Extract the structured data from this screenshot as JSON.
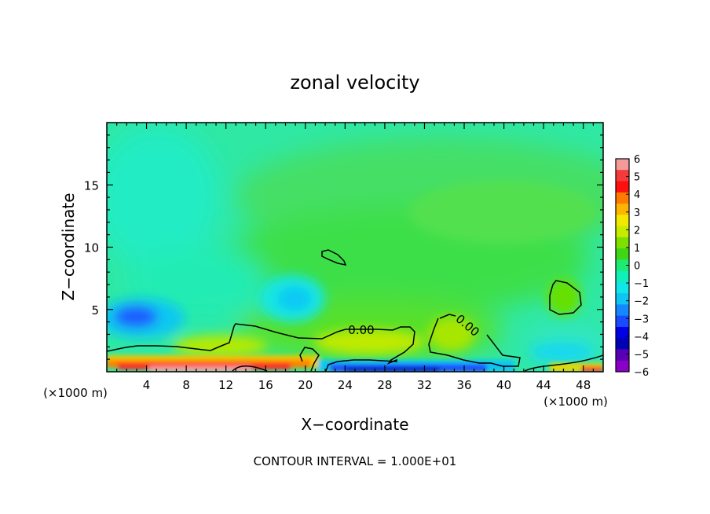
{
  "chart_data": {
    "type": "heatmap",
    "title": "zonal velocity",
    "xlabel": "X−coordinate",
    "ylabel": "Z−coordinate",
    "x_unit_left": "(×1000 m)",
    "x_unit_right": "(×1000 m)",
    "footer": "CONTOUR INTERVAL = 1.000E+01",
    "xlim": [
      0,
      50
    ],
    "ylim": [
      0,
      20
    ],
    "xticks": [
      "4",
      "8",
      "12",
      "16",
      "20",
      "24",
      "28",
      "32",
      "36",
      "40",
      "44",
      "48"
    ],
    "yticks": [
      "5",
      "10",
      "15"
    ],
    "contour_labels": [
      "0.00",
      "0.00"
    ],
    "colorbar": {
      "ticks": [
        "6",
        "5",
        "4",
        "3",
        "2",
        "1",
        "0",
        "−1",
        "−2",
        "−3",
        "−4",
        "−5",
        "−6"
      ],
      "colors": [
        "#f59a9a",
        "#f43a3a",
        "#ff1010",
        "#ff7a00",
        "#ffb400",
        "#f2e800",
        "#c8ec00",
        "#7ee000",
        "#3ed616",
        "#1eea72",
        "#10f0b8",
        "#10e8e8",
        "#10c4f4",
        "#1488ff",
        "#1a4cff",
        "#0000e6",
        "#0000b4",
        "#5a00b4",
        "#8a00c8"
      ]
    },
    "features": [
      {
        "name": "negative core",
        "x": 3.5,
        "z": 4.5,
        "value": -3.2
      },
      {
        "name": "negative core",
        "x": 18.5,
        "z": 5.6,
        "value": -2.3
      },
      {
        "name": "positive core",
        "x": 46,
        "z": 6,
        "value": 0.6
      },
      {
        "name": "strong surface jet",
        "x": 5,
        "z": 0.3,
        "value": 5.5
      },
      {
        "name": "surface reverse flow",
        "x": 30,
        "z": 0.2,
        "value": -4.5
      }
    ]
  }
}
